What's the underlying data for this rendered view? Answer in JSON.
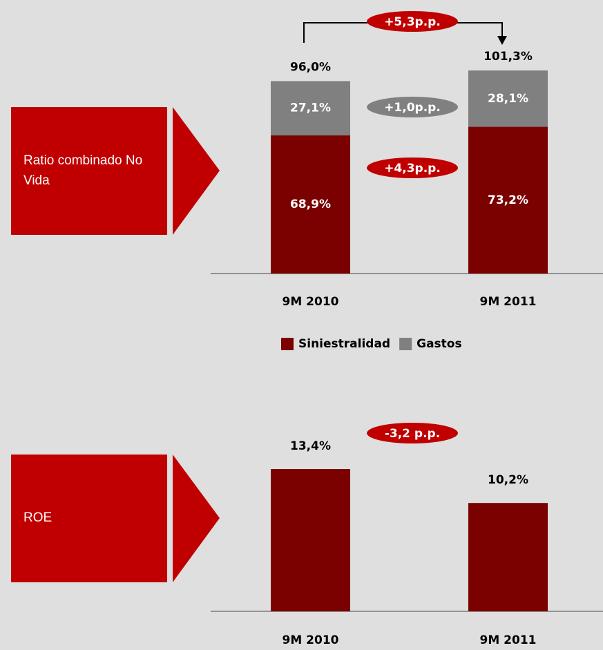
{
  "chart_data": [
    {
      "type": "stacked_bar",
      "title": "Ratio combinado No Vida",
      "categories": [
        "9M 2010",
        "9M 2011"
      ],
      "series": [
        {
          "name": "Siniestralidad",
          "color": "#7b0000",
          "values": [
            68.9,
            73.2
          ],
          "value_labels": [
            "68,9%",
            "73,2%"
          ]
        },
        {
          "name": "Gastos",
          "color": "#808080",
          "values": [
            27.1,
            28.1
          ],
          "value_labels": [
            "27,1%",
            "28,1%"
          ]
        }
      ],
      "totals": [
        96.0,
        101.3
      ],
      "total_labels": [
        "96,0%",
        "101,3%"
      ],
      "annotations": [
        "+5,3p.p.",
        "+1,0p.p.",
        "+4,3p.p."
      ],
      "legend": "bottom"
    },
    {
      "type": "bar",
      "title": "ROE",
      "categories": [
        "9M 2010",
        "9M 2011"
      ],
      "values": [
        13.4,
        10.2
      ],
      "value_labels": [
        "13,4%",
        "10,2%"
      ],
      "color": "#7b0000",
      "annotations": [
        "-3,2 p.p."
      ]
    }
  ]
}
